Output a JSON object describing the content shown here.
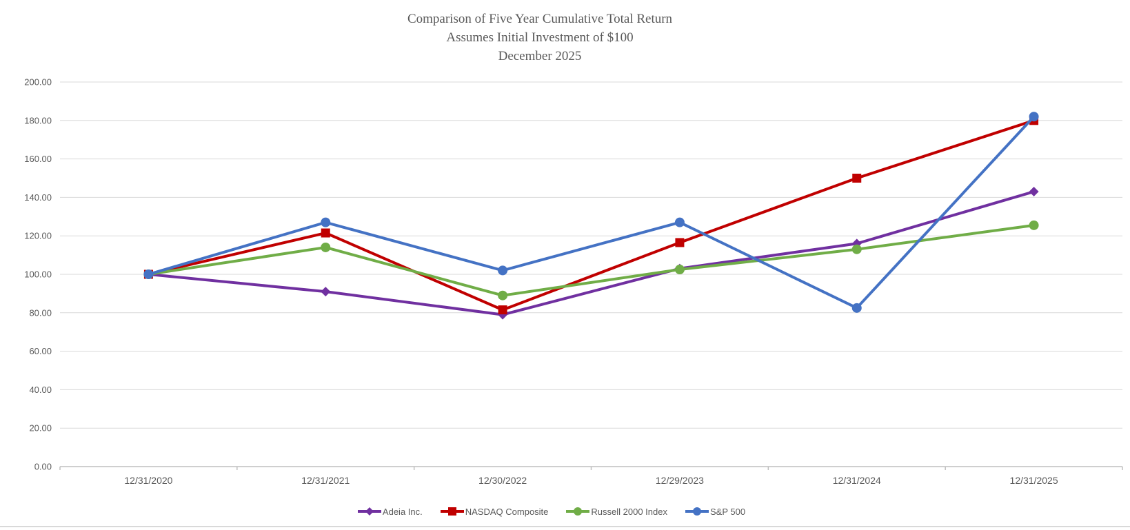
{
  "title": {
    "line1": "Comparison of Five Year Cumulative Total Return",
    "line2": "Assumes Initial Investment of $100",
    "line3": "December 2025"
  },
  "colors": {
    "background": "#FFFFFF",
    "grid": "#D9D9D9",
    "axis": "#BFBFBF",
    "text": "#595959",
    "divider": "#D9D9D9",
    "adeia_purple": "#7030A0",
    "nasdaq_red": "#C00000",
    "russell_green": "#70AD47",
    "sp500_blue": "#4472C4"
  },
  "chart_data": {
    "type": "line",
    "title": "Comparison of Five Year Cumulative Total Return",
    "subtitle": "Assumes Initial Investment of $100",
    "subtitle2": "December 2025",
    "categories": [
      "12/31/2020",
      "12/31/2021",
      "12/30/2022",
      "12/29/2023",
      "12/31/2024",
      "12/31/2025"
    ],
    "series": [
      {
        "name": "Adeia Inc.",
        "color": "#7030A0",
        "marker": "diamond",
        "values": [
          100,
          91,
          79,
          103,
          116,
          143
        ]
      },
      {
        "name": "NASDAQ Composite",
        "color": "#C00000",
        "marker": "square",
        "values": [
          100,
          121.5,
          81.5,
          116.5,
          150,
          180
        ]
      },
      {
        "name": "Russell 2000 Index",
        "color": "#70AD47",
        "marker": "circle",
        "values": [
          100,
          114,
          89,
          102.5,
          113,
          125.5
        ]
      },
      {
        "name": "S&P 500",
        "color": "#4472C4",
        "marker": "circle",
        "values": [
          100,
          127,
          102,
          127,
          82.5,
          182
        ]
      }
    ],
    "xlabel": "",
    "ylabel": "",
    "ylim": [
      0,
      200
    ],
    "ytick_step": 20,
    "ytick_decimals": 2,
    "grid": true,
    "legend_position": "bottom"
  }
}
